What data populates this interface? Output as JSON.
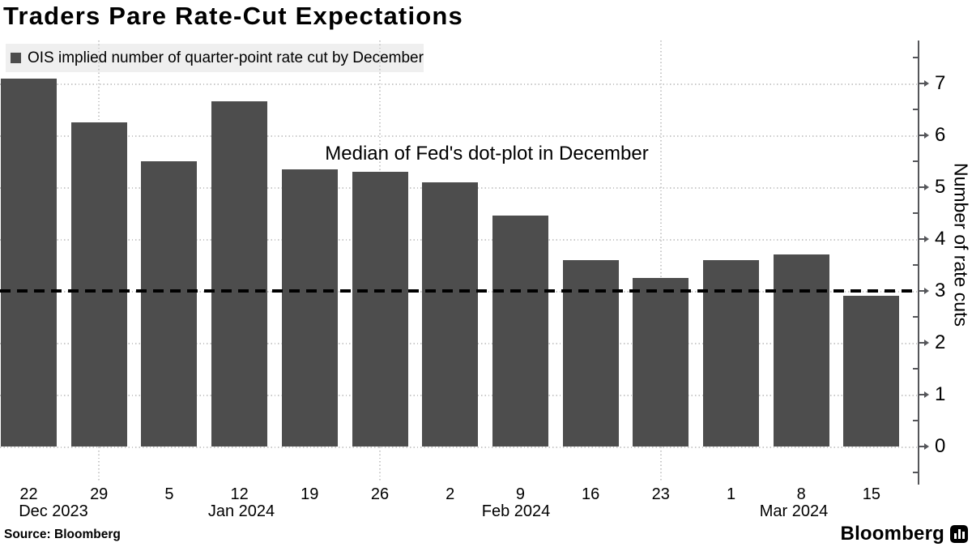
{
  "title": "Traders Pare Rate-Cut Expectations",
  "legend": {
    "label": "OIS implied number of quarter-point rate cut by December"
  },
  "annotation": "Median of Fed's dot-plot in December",
  "source_line": "Source: Bloomberg",
  "brand": {
    "wordmark": "Bloomberg"
  },
  "colors": {
    "bar": "#4d4d4d",
    "legend_background": "#efefef",
    "gridline": "#c9c9c9",
    "axis": "#55565a",
    "reference_line": "#000000",
    "text": "#000000"
  },
  "chart_data": {
    "type": "bar",
    "title": "Traders Pare Rate-Cut Expectations",
    "series_name": "OIS implied number of quarter-point rate cut by December",
    "categories": [
      "2023-12-22",
      "2023-12-29",
      "2024-01-05",
      "2024-01-12",
      "2024-01-19",
      "2024-01-26",
      "2024-02-02",
      "2024-02-09",
      "2024-02-16",
      "2024-02-23",
      "2024-03-01",
      "2024-03-08",
      "2024-03-15"
    ],
    "x_tick_labels": [
      "22",
      "29",
      "5",
      "12",
      "19",
      "26",
      "2",
      "9",
      "16",
      "23",
      "1",
      "8",
      "15"
    ],
    "month_labels": [
      "Dec 2023",
      "Jan 2024",
      "Feb 2024",
      "Mar 2024"
    ],
    "values": [
      7.1,
      6.25,
      5.5,
      6.65,
      5.35,
      5.3,
      5.1,
      4.45,
      3.6,
      3.25,
      3.6,
      3.7,
      2.9
    ],
    "xlabel": "",
    "ylabel": "Number of rate cuts",
    "ylim": [
      0,
      7.8
    ],
    "yticks": [
      0,
      1,
      2,
      3,
      4,
      5,
      6,
      7
    ],
    "grid": "dotted",
    "vgrid_tick_indices": [
      1,
      5,
      9
    ],
    "legend_position": "top-left",
    "bar_color": "#4d4d4d",
    "reference_line": {
      "value": 3,
      "style": "dashed",
      "color": "#000000",
      "label": "Median of Fed's dot-plot in December"
    }
  }
}
